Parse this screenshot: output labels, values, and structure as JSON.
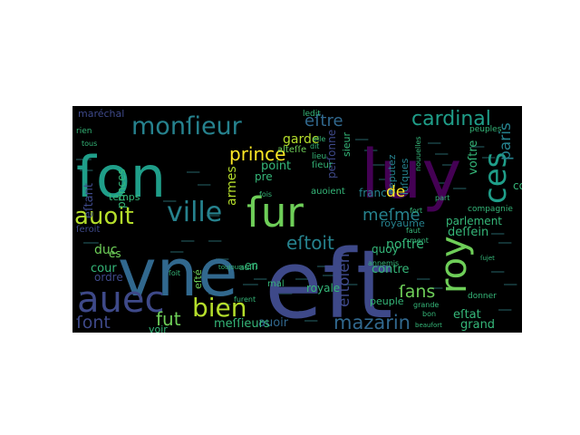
{
  "wordcloud": {
    "palette": {
      "background": "#000000",
      "yellow": "#fde725",
      "lime": "#b5de2b",
      "green": "#6ece58",
      "teal": "#35b779",
      "cyan": "#1f9e89",
      "blue": "#26828e",
      "slate": "#31688e",
      "indigo": "#3e4989",
      "violet": "#482878",
      "purple": "#440154"
    },
    "words": [
      {
        "text": "ſon",
        "color": "#1f9e89"
      },
      {
        "text": "luy",
        "color": "#440154"
      },
      {
        "text": "vne",
        "color": "#31688e"
      },
      {
        "text": "eſt",
        "color": "#3e4989"
      },
      {
        "text": "roy",
        "color": "#6ece58"
      },
      {
        "text": "auec",
        "color": "#3e4989"
      },
      {
        "text": "ſur",
        "color": "#6ece58"
      },
      {
        "text": "monſieur",
        "color": "#26828e"
      },
      {
        "text": "cardinal",
        "color": "#1f9e89"
      },
      {
        "text": "eſtre",
        "color": "#31688e"
      },
      {
        "text": "ville",
        "color": "#26828e"
      },
      {
        "text": "auoit",
        "color": "#b5de2b"
      },
      {
        "text": "bien",
        "color": "#b5de2b"
      },
      {
        "text": "ces",
        "color": "#1f9e89"
      },
      {
        "text": "prince",
        "color": "#fde725"
      },
      {
        "text": "eſtoit",
        "color": "#26828e"
      },
      {
        "text": "meſme",
        "color": "#26828e"
      },
      {
        "text": "mazarin",
        "color": "#31688e"
      },
      {
        "text": "paris",
        "color": "#26828e"
      },
      {
        "text": "eſtoient",
        "color": "#3e4989"
      },
      {
        "text": "ſont",
        "color": "#3e4989"
      },
      {
        "text": "fut",
        "color": "#6ece58"
      },
      {
        "text": "auoir",
        "color": "#31688e"
      },
      {
        "text": "ſans",
        "color": "#6ece58"
      },
      {
        "text": "garde",
        "color": "#b5de2b"
      },
      {
        "text": "point",
        "color": "#35b779"
      },
      {
        "text": "armes",
        "color": "#b5de2b"
      },
      {
        "text": "parlement",
        "color": "#35b779"
      },
      {
        "text": "duc",
        "color": "#6ece58"
      },
      {
        "text": "cour",
        "color": "#35b779"
      },
      {
        "text": "france",
        "color": "#26828e"
      },
      {
        "text": "contre",
        "color": "#35b779"
      },
      {
        "text": "noſtre",
        "color": "#35b779"
      },
      {
        "text": "meſſieurs",
        "color": "#35b779"
      },
      {
        "text": "eſtat",
        "color": "#35b779"
      },
      {
        "text": "grand",
        "color": "#35b779"
      },
      {
        "text": "deſſein",
        "color": "#35b779"
      },
      {
        "text": "ordre",
        "color": "#3e4989"
      },
      {
        "text": "princes",
        "color": "#35b779"
      },
      {
        "text": "temps",
        "color": "#35b779"
      },
      {
        "text": "eſtant",
        "color": "#3e4989"
      },
      {
        "text": "maréchal",
        "color": "#3e4989"
      },
      {
        "text": "voſtre",
        "color": "#35b779"
      },
      {
        "text": "royaume",
        "color": "#26828e"
      },
      {
        "text": "quoy",
        "color": "#35b779"
      },
      {
        "text": "royale",
        "color": "#35b779"
      },
      {
        "text": "peuple",
        "color": "#35b779"
      },
      {
        "text": "auoient",
        "color": "#35b779"
      },
      {
        "text": "sieur",
        "color": "#35b779"
      },
      {
        "text": "perſonne",
        "color": "#3e4989"
      },
      {
        "text": "deputez",
        "color": "#26828e"
      },
      {
        "text": "iuſques",
        "color": "#26828e"
      },
      {
        "text": "alteſſe",
        "color": "#6ece58"
      },
      {
        "text": "eſté",
        "color": "#6ece58"
      },
      {
        "text": "voir",
        "color": "#35b779"
      },
      {
        "text": "mal",
        "color": "#35b779"
      },
      {
        "text": "lieu",
        "color": "#35b779"
      },
      {
        "text": "ledit",
        "color": "#35b779"
      },
      {
        "text": "compagnie",
        "color": "#35b779"
      },
      {
        "text": "donner",
        "color": "#35b779"
      },
      {
        "text": "ſieur",
        "color": "#35b779"
      },
      {
        "text": "rien",
        "color": "#35b779"
      },
      {
        "text": "de",
        "color": "#fde725"
      },
      {
        "text": "en",
        "color": "#35b779"
      },
      {
        "text": "es",
        "color": "#6ece58"
      },
      {
        "text": "pre",
        "color": "#35b779"
      },
      {
        "text": "con",
        "color": "#35b779"
      },
      {
        "text": "bon",
        "color": "#35b779"
      },
      {
        "text": "auſſi",
        "color": "#35b779"
      },
      {
        "text": "ment",
        "color": "#35b779"
      },
      {
        "text": "faut",
        "color": "#35b779"
      },
      {
        "text": "fort",
        "color": "#35b779"
      },
      {
        "text": "part",
        "color": "#35b779"
      },
      {
        "text": "ſoit",
        "color": "#35b779"
      },
      {
        "text": "peuples",
        "color": "#35b779"
      },
      {
        "text": "annemis",
        "color": "#35b779"
      },
      {
        "text": "grande",
        "color": "#35b779"
      },
      {
        "text": "nouuelles",
        "color": "#35b779"
      },
      {
        "text": "dit",
        "color": "#35b779"
      },
      {
        "text": "elle",
        "color": "#35b779"
      },
      {
        "text": "furent",
        "color": "#35b779"
      },
      {
        "text": "fois",
        "color": "#35b779"
      },
      {
        "text": "ſeroit",
        "color": "#3e4989"
      },
      {
        "text": "tous",
        "color": "#35b779"
      },
      {
        "text": "toujours",
        "color": "#35b779"
      },
      {
        "text": "beaufort",
        "color": "#35b779"
      },
      {
        "text": "ſujet",
        "color": "#35b779"
      }
    ]
  }
}
